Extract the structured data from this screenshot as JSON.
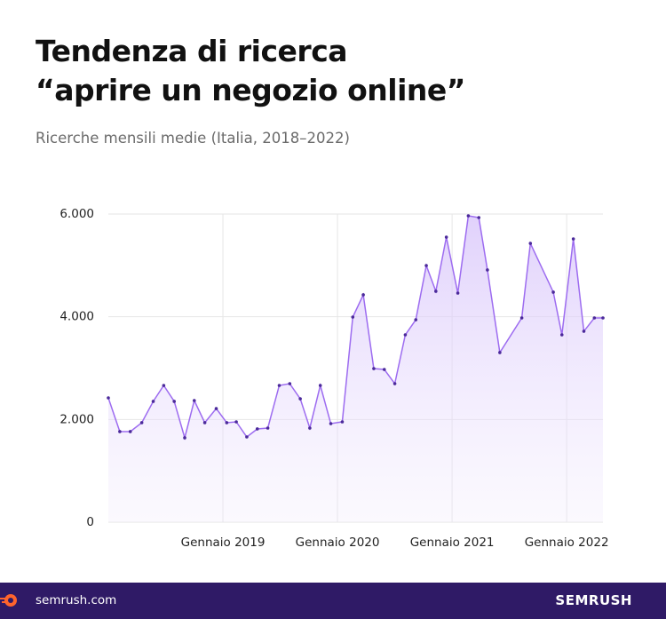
{
  "chart_data": {
    "type": "area",
    "title": "Tendenza di ricerca\n“aprire un negozio online”",
    "subtitle": "Ricerche mensili medie (Italia, 2018–2022)",
    "x": [
      0,
      1.2,
      2.3,
      3.5,
      4.7,
      5.8,
      6.9,
      8,
      9,
      10.1,
      11.3,
      12.4,
      13.4,
      14.5,
      15.6,
      16.7,
      17.9,
      19,
      20.1,
      21.1,
      22.2,
      23.3,
      24.5,
      25.6,
      26.7,
      27.8,
      28.9,
      30,
      31.1,
      32.2,
      33.3,
      34.3,
      35.4,
      36.6,
      37.7,
      38.8,
      39.7,
      41,
      43.3,
      44.2,
      46.6,
      47.5,
      48.7,
      49.8,
      50.9,
      51.8
    ],
    "values": [
      2420,
      1764,
      1764,
      1937,
      2352,
      2663,
      2352,
      1643,
      2369,
      1937,
      2213,
      1937,
      1954,
      1660,
      1816,
      1833,
      2663,
      2697,
      2403,
      1833,
      2663,
      1919,
      1954,
      3994,
      4427,
      2991,
      2974,
      2697,
      3648,
      3942,
      4997,
      4496,
      5550,
      4461,
      5965,
      5931,
      4911,
      3303,
      3977,
      5429,
      4479,
      3648,
      5516,
      3717,
      3977,
      3977
    ],
    "color": "#9d6cf0",
    "xlim": [
      0,
      51.8
    ],
    "xticks": [
      {
        "value": 12,
        "label": "Gennaio 2019"
      },
      {
        "value": 24,
        "label": "Gennaio 2020"
      },
      {
        "value": 36,
        "label": "Gennaio 2021"
      },
      {
        "value": 48,
        "label": "Gennaio 2022"
      }
    ],
    "ylim": [
      0,
      6000
    ],
    "yticks": [
      0,
      {
        "value": 2000,
        "label": "2.000"
      },
      {
        "value": 4000,
        "label": "4.000"
      },
      {
        "value": 6000,
        "label": "6.000"
      }
    ],
    "grid": true
  },
  "footer": {
    "site": "semrush.com",
    "brand": "SEMRUSH"
  }
}
